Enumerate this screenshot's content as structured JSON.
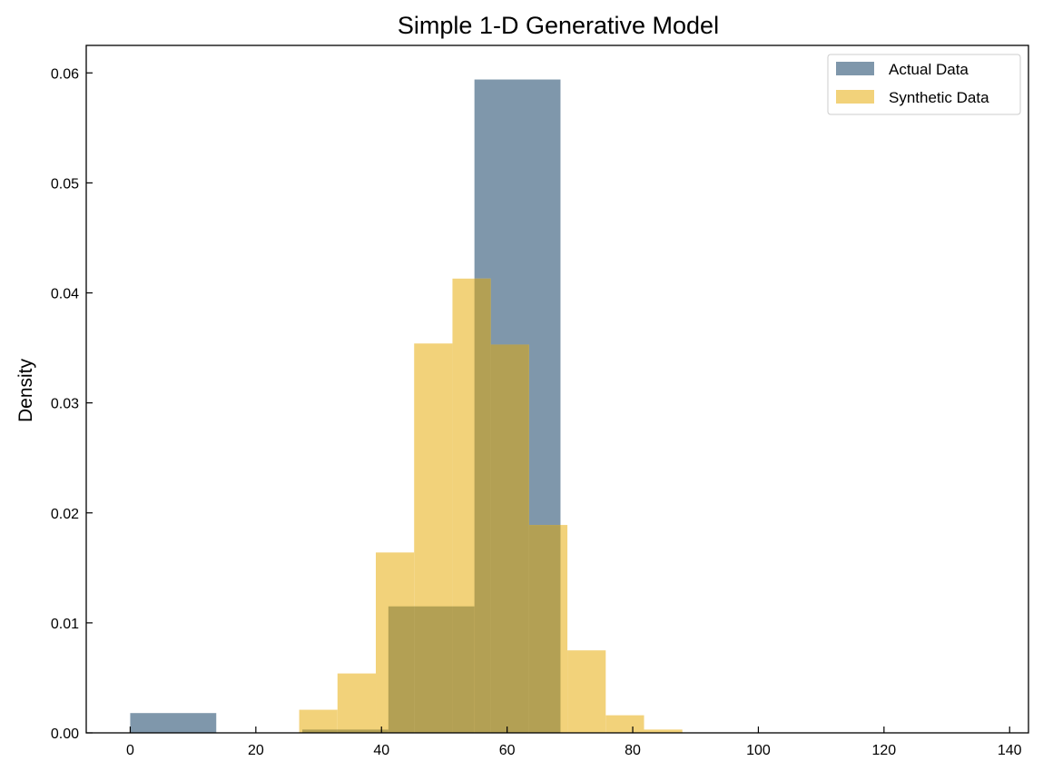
{
  "chart_data": {
    "type": "bar",
    "title": "Simple 1-D Generative Model",
    "xlabel": "",
    "ylabel": "Density",
    "xlim": [
      -7,
      143
    ],
    "ylim": [
      0,
      0.0625
    ],
    "xticks": [
      0,
      20,
      40,
      60,
      80,
      100,
      120,
      140
    ],
    "yticks": [
      0.0,
      0.01,
      0.02,
      0.03,
      0.04,
      0.05,
      0.06
    ],
    "xtick_labels": [
      "0",
      "20",
      "40",
      "60",
      "80",
      "100",
      "120",
      "140"
    ],
    "ytick_labels": [
      "0.00",
      "0.01",
      "0.02",
      "0.03",
      "0.04",
      "0.05",
      "0.06"
    ],
    "grid": false,
    "legend_position": "top-right",
    "series": [
      {
        "name": "Actual Data",
        "color": "#7f97ab",
        "bins": [
          {
            "x0": 0.0,
            "x1": 13.7,
            "density": 0.0018
          },
          {
            "x0": 13.7,
            "x1": 27.4,
            "density": 0.0
          },
          {
            "x0": 27.4,
            "x1": 41.1,
            "density": 0.0003
          },
          {
            "x0": 41.1,
            "x1": 54.8,
            "density": 0.0115
          },
          {
            "x0": 54.8,
            "x1": 68.5,
            "density": 0.0594
          },
          {
            "x0": 68.5,
            "x1": 82.2,
            "density": 0.0
          },
          {
            "x0": 82.2,
            "x1": 95.9,
            "density": 0.0
          },
          {
            "x0": 95.9,
            "x1": 109.6,
            "density": 0.0
          },
          {
            "x0": 109.6,
            "x1": 123.3,
            "density": 0.0
          },
          {
            "x0": 123.3,
            "x1": 137.0,
            "density": 0.0
          }
        ]
      },
      {
        "name": "Synthetic Data",
        "color": "#f2d27a",
        "bins": [
          {
            "x0": 26.9,
            "x1": 33.0,
            "density": 0.0021
          },
          {
            "x0": 33.0,
            "x1": 39.1,
            "density": 0.0054
          },
          {
            "x0": 39.1,
            "x1": 45.2,
            "density": 0.0164
          },
          {
            "x0": 45.2,
            "x1": 51.3,
            "density": 0.0354
          },
          {
            "x0": 51.3,
            "x1": 57.4,
            "density": 0.0413
          },
          {
            "x0": 57.4,
            "x1": 63.5,
            "density": 0.0353
          },
          {
            "x0": 63.5,
            "x1": 69.6,
            "density": 0.0189
          },
          {
            "x0": 69.6,
            "x1": 75.7,
            "density": 0.0075
          },
          {
            "x0": 75.7,
            "x1": 81.8,
            "density": 0.0016
          },
          {
            "x0": 81.8,
            "x1": 87.9,
            "density": 0.0003
          }
        ]
      }
    ],
    "overlap_color": "#b3a054"
  }
}
